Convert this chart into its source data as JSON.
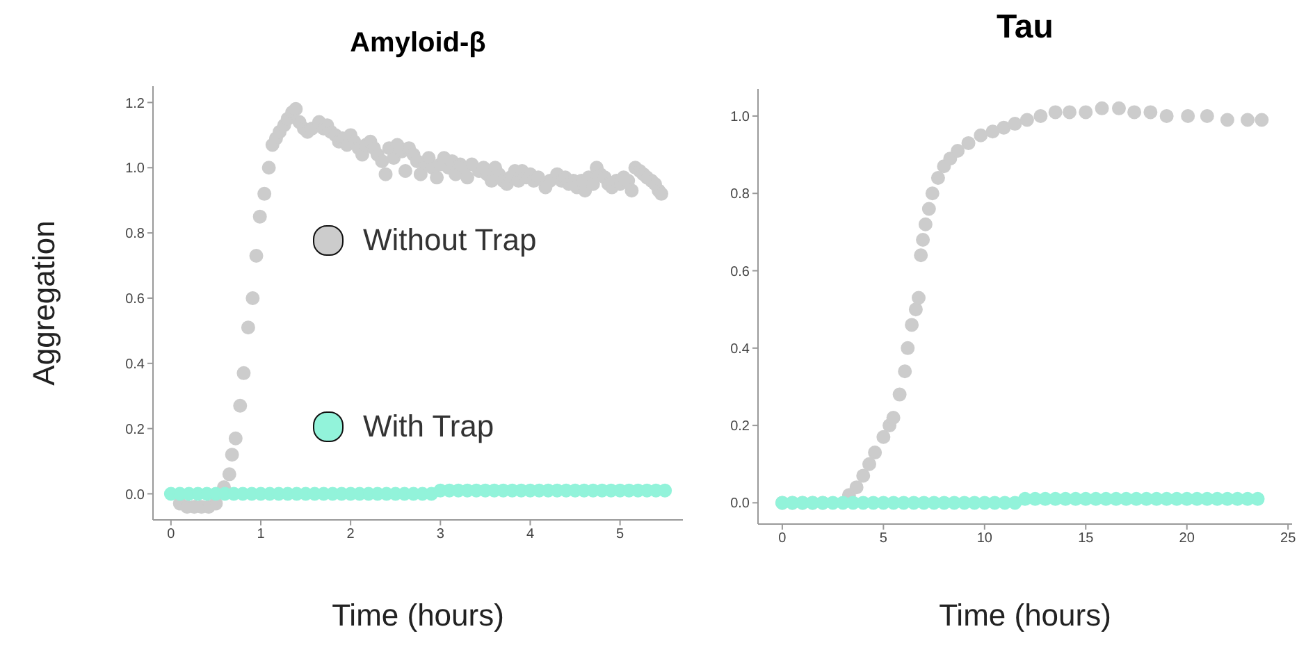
{
  "chart_data": [
    {
      "type": "scatter",
      "title": "Amyloid-β",
      "xlabel": "Time (hours)",
      "ylabel": "Aggregation",
      "marker": "circle",
      "legend": "center",
      "xlim": [
        -0.2,
        5.7
      ],
      "ylim": [
        -0.08,
        1.25
      ],
      "xticks": [
        0,
        1,
        2,
        3,
        4,
        5
      ],
      "yticks": [
        {
          "value": 0,
          "label": "0.0"
        },
        {
          "value": 0.2,
          "label": "0.2"
        },
        {
          "value": 0.4,
          "label": "0.4"
        },
        {
          "value": 0.6,
          "label": "0.6"
        },
        {
          "value": 0.8,
          "label": "0.8"
        },
        {
          "value": 1,
          "label": "1.0"
        },
        {
          "value": 1.2,
          "label": "1.2"
        }
      ],
      "series": [
        {
          "name": "Without Trap",
          "color": "#cccccc",
          "x": [
            0.1,
            0.18,
            0.26,
            0.34,
            0.42,
            0.5,
            0.59,
            0.65,
            0.68,
            0.72,
            0.77,
            0.81,
            0.86,
            0.91,
            0.95,
            0.99,
            1.04,
            1.09,
            1.13,
            1.17,
            1.21,
            1.26,
            1.3,
            1.35,
            1.39,
            1.43,
            1.48,
            1.52,
            1.57,
            1.65,
            1.7,
            1.74,
            1.78,
            1.83,
            1.87,
            1.91,
            1.96,
            2.0,
            2.04,
            2.09,
            2.13,
            2.17,
            2.22,
            2.26,
            2.3,
            2.35,
            2.39,
            2.43,
            2.48,
            2.52,
            2.57,
            2.61,
            2.65,
            2.7,
            2.74,
            2.78,
            2.83,
            2.87,
            2.91,
            2.96,
            3.0,
            3.04,
            3.09,
            3.13,
            3.17,
            3.22,
            3.26,
            3.3,
            3.35,
            3.43,
            3.48,
            3.52,
            3.57,
            3.61,
            3.65,
            3.7,
            3.74,
            3.78,
            3.83,
            3.87,
            3.91,
            3.96,
            4.0,
            4.04,
            4.09,
            4.17,
            4.22,
            4.3,
            4.35,
            4.39,
            4.43,
            4.48,
            4.52,
            4.57,
            4.61,
            4.65,
            4.7,
            4.74,
            4.78,
            4.83,
            4.87,
            4.91,
            4.96,
            5.0,
            5.04,
            5.09,
            5.13,
            5.17,
            5.22,
            5.26,
            5.3,
            5.35,
            5.39,
            5.43,
            5.46
          ],
          "values": [
            -0.03,
            -0.04,
            -0.04,
            -0.04,
            -0.04,
            -0.03,
            0.02,
            0.06,
            0.12,
            0.17,
            0.27,
            0.37,
            0.51,
            0.6,
            0.73,
            0.85,
            0.92,
            1.0,
            1.07,
            1.09,
            1.11,
            1.13,
            1.15,
            1.17,
            1.18,
            1.14,
            1.12,
            1.11,
            1.12,
            1.14,
            1.12,
            1.13,
            1.11,
            1.1,
            1.08,
            1.09,
            1.07,
            1.1,
            1.08,
            1.06,
            1.04,
            1.07,
            1.08,
            1.06,
            1.04,
            1.02,
            0.98,
            1.06,
            1.03,
            1.07,
            1.05,
            0.99,
            1.06,
            1.04,
            1.02,
            0.98,
            1.01,
            1.03,
            1.0,
            0.97,
            1.01,
            1.03,
            1.0,
            1.02,
            0.98,
            1.01,
            1.0,
            0.97,
            1.01,
            0.99,
            1.0,
            0.98,
            0.96,
            1.0,
            0.98,
            0.96,
            0.95,
            0.97,
            0.99,
            0.96,
            0.99,
            0.97,
            0.98,
            0.96,
            0.97,
            0.94,
            0.96,
            0.98,
            0.96,
            0.97,
            0.95,
            0.96,
            0.94,
            0.96,
            0.93,
            0.97,
            0.95,
            1.0,
            0.98,
            0.97,
            0.95,
            0.94,
            0.96,
            0.95,
            0.97,
            0.96,
            0.93,
            1.0,
            0.99,
            0.98,
            0.97,
            0.96,
            0.95,
            0.93,
            0.92
          ]
        },
        {
          "name": "With Trap",
          "color": "#92f3da",
          "x": [
            0,
            0.1,
            0.2,
            0.3,
            0.4,
            0.5,
            0.6,
            0.7,
            0.8,
            0.9,
            1.0,
            1.1,
            1.2,
            1.3,
            1.4,
            1.5,
            1.6,
            1.7,
            1.8,
            1.9,
            2.0,
            2.1,
            2.2,
            2.3,
            2.4,
            2.5,
            2.6,
            2.7,
            2.8,
            2.9,
            3.0,
            3.1,
            3.2,
            3.3,
            3.4,
            3.5,
            3.6,
            3.7,
            3.8,
            3.9,
            4.0,
            4.1,
            4.2,
            4.3,
            4.4,
            4.5,
            4.6,
            4.7,
            4.8,
            4.9,
            5.0,
            5.1,
            5.2,
            5.3,
            5.4,
            5.5
          ],
          "values": [
            0,
            0,
            0,
            0,
            0,
            0,
            0,
            0,
            0,
            0,
            0,
            0,
            0,
            0,
            0,
            0,
            0,
            0,
            0,
            0,
            0,
            0,
            0,
            0,
            0,
            0,
            0,
            0,
            0,
            0,
            0.01,
            0.01,
            0.01,
            0.01,
            0.01,
            0.01,
            0.01,
            0.01,
            0.01,
            0.01,
            0.01,
            0.01,
            0.01,
            0.01,
            0.01,
            0.01,
            0.01,
            0.01,
            0.01,
            0.01,
            0.01,
            0.01,
            0.01,
            0.01,
            0.01,
            0.01
          ]
        }
      ]
    },
    {
      "type": "scatter",
      "title": "Tau",
      "xlabel": "Time (hours)",
      "marker": "circle",
      "xlim": [
        -1.2,
        25.2
      ],
      "ylim": [
        -0.055,
        1.07
      ],
      "xticks": [
        0,
        5,
        10,
        15,
        20,
        25
      ],
      "yticks": [
        {
          "value": 0,
          "label": "0.0"
        },
        {
          "value": 0.2,
          "label": "0.2"
        },
        {
          "value": 0.4,
          "label": "0.4"
        },
        {
          "value": 0.6,
          "label": "0.6"
        },
        {
          "value": 0.8,
          "label": "0.8"
        },
        {
          "value": 1,
          "label": "1.0"
        }
      ],
      "series": [
        {
          "color": "#cccccc",
          "x": [
            0,
            0.5,
            1,
            1.5,
            2,
            2.5,
            3,
            3.3,
            3.67,
            4,
            4.3,
            4.58,
            5,
            5.3,
            5.49,
            5.8,
            6.06,
            6.2,
            6.4,
            6.6,
            6.74,
            6.85,
            6.95,
            7.08,
            7.25,
            7.42,
            7.7,
            7.99,
            8.3,
            8.67,
            9.2,
            9.81,
            10.4,
            10.95,
            11.5,
            12.1,
            12.77,
            13.5,
            14.2,
            15,
            15.8,
            16.64,
            17.4,
            18.2,
            19,
            20.05,
            21,
            22,
            23,
            23.7
          ],
          "values": [
            0,
            0,
            0,
            0,
            0,
            null,
            null,
            0.02,
            0.04,
            0.07,
            0.1,
            0.13,
            0.17,
            0.2,
            0.22,
            0.28,
            0.34,
            0.4,
            0.46,
            0.5,
            0.53,
            0.64,
            0.68,
            0.72,
            0.76,
            0.8,
            0.84,
            0.87,
            0.89,
            0.91,
            0.93,
            0.95,
            0.96,
            0.97,
            0.98,
            0.99,
            1.0,
            1.01,
            1.01,
            1.01,
            1.02,
            1.02,
            1.01,
            1.01,
            1.0,
            1.0,
            1.0,
            0.99,
            0.99,
            0.99
          ]
        },
        {
          "color": "#92f3da",
          "x": [
            0,
            0.5,
            1,
            1.5,
            2,
            2.5,
            3,
            3.5,
            4,
            4.5,
            5,
            5.5,
            6,
            6.5,
            7,
            7.5,
            8,
            8.5,
            9,
            9.5,
            10,
            10.5,
            11,
            11.5,
            12,
            12.5,
            13,
            13.5,
            14,
            14.5,
            15,
            15.5,
            16,
            16.5,
            17,
            17.5,
            18,
            18.5,
            19,
            19.5,
            20,
            20.5,
            21,
            21.5,
            22,
            22.5,
            23,
            23.5
          ],
          "values": [
            0,
            0,
            0,
            0,
            0,
            0,
            0,
            0,
            0,
            0,
            0,
            0,
            0,
            0,
            0,
            0,
            0,
            0,
            0,
            0,
            0,
            0,
            0,
            0,
            0.01,
            0.01,
            0.01,
            0.01,
            0.01,
            0.01,
            0.01,
            0.01,
            0.01,
            0.01,
            0.01,
            0.01,
            0.01,
            0.01,
            0.01,
            0.01,
            0.01,
            0.01,
            0.01,
            0.01,
            0.01,
            0.01,
            0.01,
            0.01
          ]
        }
      ]
    }
  ]
}
